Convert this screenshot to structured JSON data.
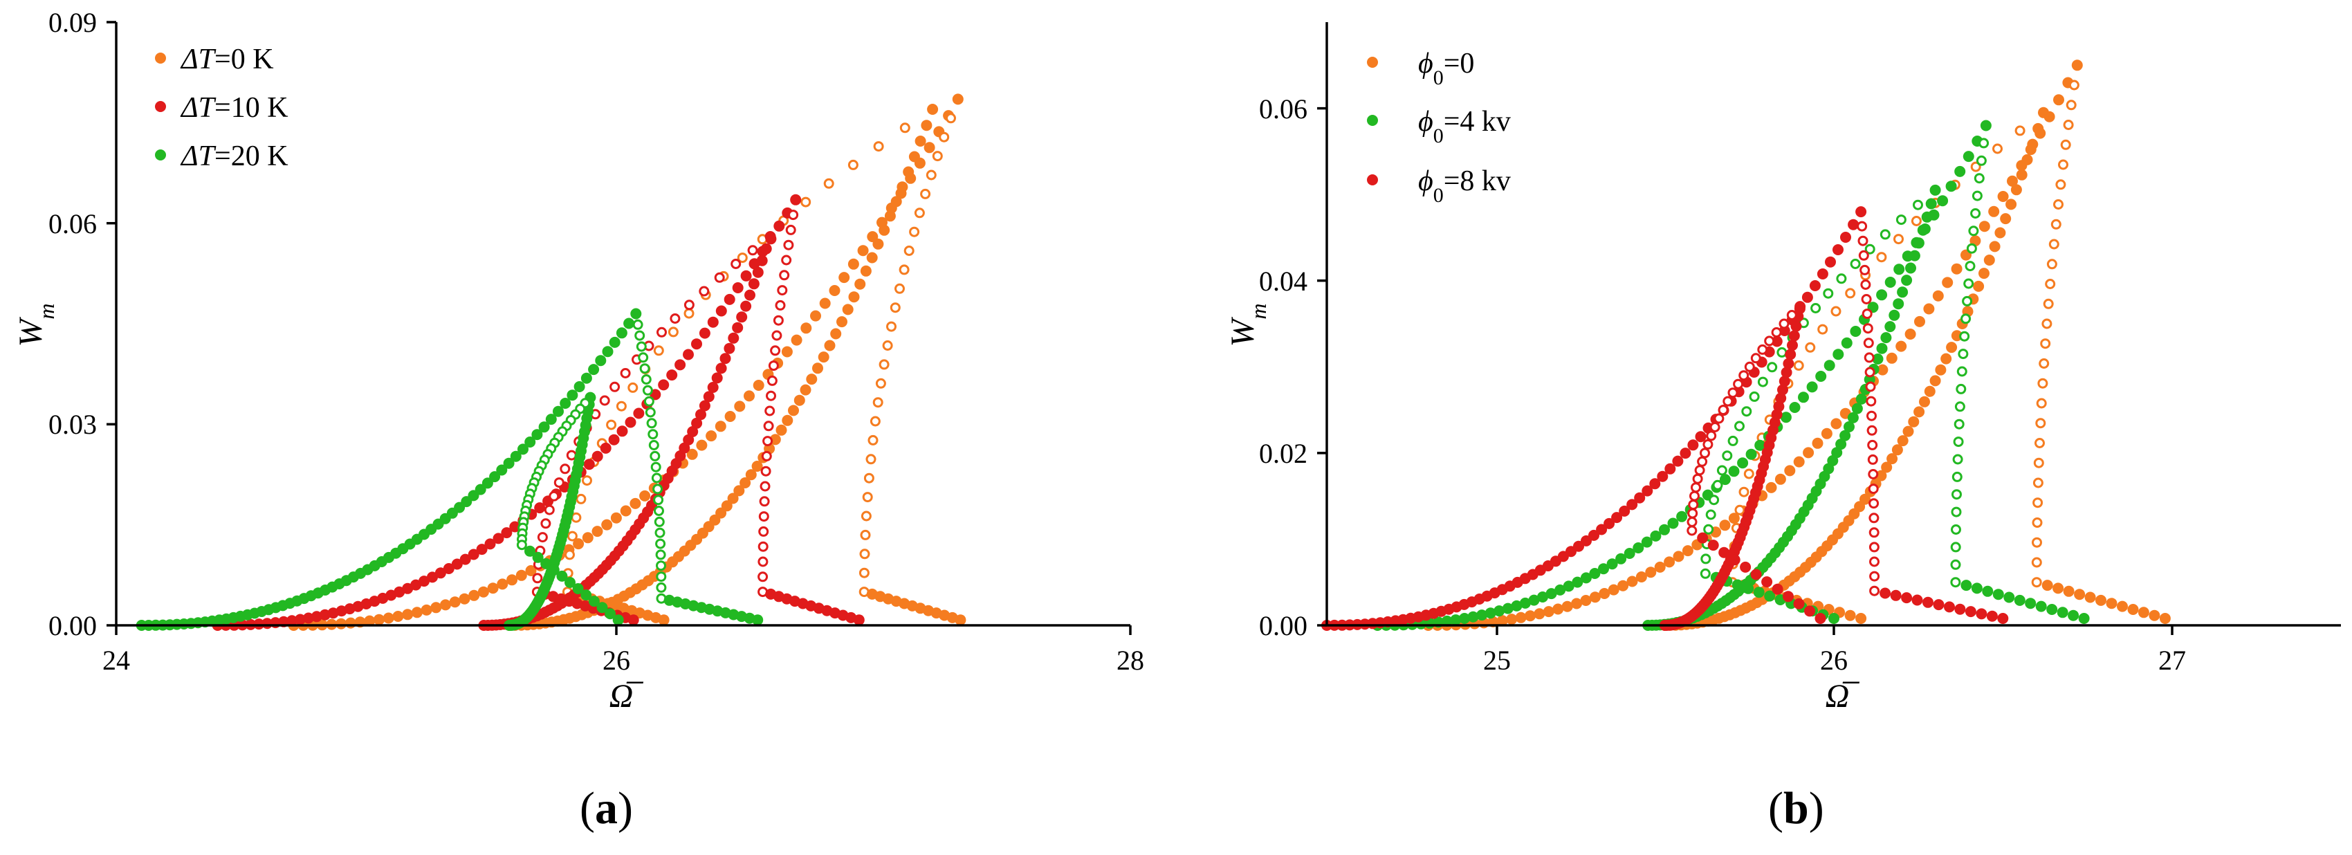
{
  "figure": {
    "panels": [
      {
        "label": "(a)",
        "label_text": "a"
      },
      {
        "label": "(b)",
        "label_text": "b"
      }
    ]
  },
  "chart_data": [
    {
      "type": "scatter",
      "panel": "(a)",
      "title": "",
      "xlabel": "Ω̅",
      "ylabel": "W_m",
      "xlim": [
        24,
        28
      ],
      "ylim": [
        0,
        0.09
      ],
      "xticks": [
        "24",
        "26",
        "28"
      ],
      "xtick_values": [
        24,
        26,
        28
      ],
      "yticks": [
        "0.00",
        "0.03",
        "0.06",
        "0.09"
      ],
      "ytick_values": [
        0.0,
        0.03,
        0.06,
        0.09
      ],
      "legend_position": "top-left",
      "series": [
        {
          "name": "ΔT=0 K",
          "legend_symbol": "ΔT",
          "legend_value": "=0 K",
          "color": "#F57C20",
          "curves": [
            {
              "x0": 24.7,
              "ypk": 0.0785,
              "xpk": 27.32,
              "xret": 26.95,
              "ybot": 0.005
            },
            {
              "x0": 25.55,
              "ypk": 0.077,
              "xpk": 27.22,
              "xret": 25.78,
              "ybot": 0.005
            }
          ]
        },
        {
          "name": "ΔT=10 K",
          "legend_symbol": "ΔT",
          "legend_value": "=10 K",
          "color": "#E01B1B",
          "curves": [
            {
              "x0": 24.4,
              "ypk": 0.0635,
              "xpk": 26.68,
              "xret": 26.55,
              "ybot": 0.005
            },
            {
              "x0": 25.45,
              "ypk": 0.058,
              "xpk": 26.58,
              "xret": 25.66,
              "ybot": 0.005
            }
          ]
        },
        {
          "name": "ΔT=20 K",
          "legend_symbol": "ΔT",
          "legend_value": "=20 K",
          "color": "#22B822",
          "curves": [
            {
              "x0": 24.1,
              "ypk": 0.0465,
              "xpk": 26.05,
              "xret": 26.15,
              "ybot": 0.004
            },
            {
              "x0": 25.55,
              "ypk": 0.034,
              "xpk": 25.87,
              "xret": 25.6,
              "ybot": 0.012
            }
          ]
        }
      ]
    },
    {
      "type": "scatter",
      "panel": "(b)",
      "title": "",
      "xlabel": "Ω̅",
      "ylabel": "W_m",
      "xlim": [
        24.5,
        27.5
      ],
      "ylim": [
        0,
        0.07
      ],
      "xticks": [
        "25",
        "26",
        "27"
      ],
      "xtick_values": [
        25,
        26,
        27
      ],
      "yticks": [
        "0.00",
        "0.02",
        "0.04",
        "0.06"
      ],
      "ytick_values": [
        0.0,
        0.02,
        0.04,
        0.06
      ],
      "legend_position": "top-left",
      "series": [
        {
          "name": "ϕ0=0",
          "legend_symbol": "ϕ",
          "legend_sub": "0",
          "legend_value": "=0",
          "color": "#F57C20",
          "curves": [
            {
              "x0": 24.8,
              "ypk": 0.065,
              "xpk": 26.72,
              "xret": 26.6,
              "ybot": 0.005
            },
            {
              "x0": 25.5,
              "ypk": 0.0595,
              "xpk": 26.62,
              "xret": 25.7,
              "ybot": 0.005
            }
          ]
        },
        {
          "name": "ϕ0=4 kv",
          "legend_symbol": "ϕ",
          "legend_sub": "0",
          "legend_value": "=4 kv",
          "color": "#22B822",
          "curves": [
            {
              "x0": 24.65,
              "ypk": 0.058,
              "xpk": 26.45,
              "xret": 26.36,
              "ybot": 0.005
            },
            {
              "x0": 25.45,
              "ypk": 0.0505,
              "xpk": 26.3,
              "xret": 25.62,
              "ybot": 0.006
            }
          ]
        },
        {
          "name": "ϕ0=8 kv",
          "legend_symbol": "ϕ",
          "legend_sub": "0",
          "legend_value": "=8 kv",
          "color": "#E01B1B",
          "curves": [
            {
              "x0": 24.5,
              "ypk": 0.048,
              "xpk": 26.08,
              "xret": 26.12,
              "ybot": 0.004
            },
            {
              "x0": 25.5,
              "ypk": 0.037,
              "xpk": 25.9,
              "xret": 25.58,
              "ybot": 0.011
            }
          ]
        }
      ]
    }
  ]
}
